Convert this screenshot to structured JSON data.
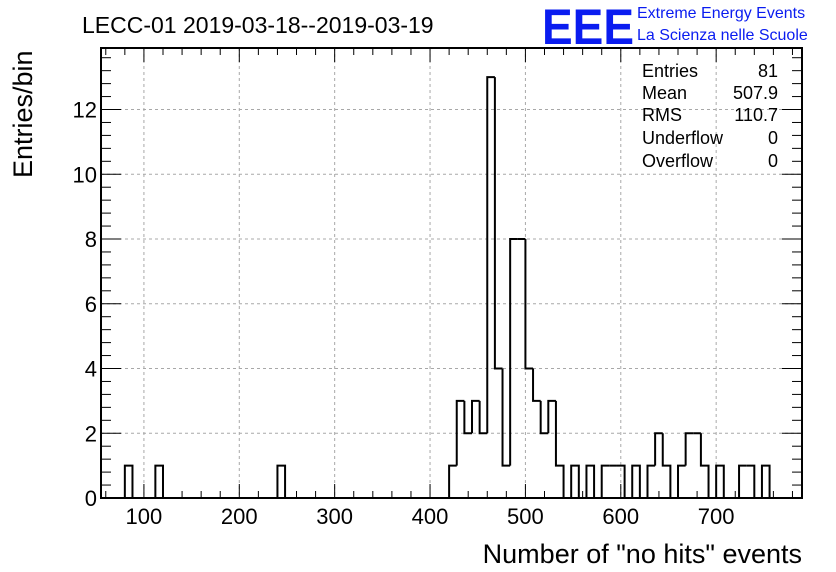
{
  "header": {
    "title": "LECC-01 2019-03-18--2019-03-19"
  },
  "logo": {
    "mark": "EEE",
    "line1": "Extreme Energy Events",
    "line2": "La Scienza nelle Scuole",
    "color": "#0a1cf0"
  },
  "stats": {
    "entries_label": "Entries",
    "entries_value": "81",
    "mean_label": "Mean",
    "mean_value": "507.9",
    "rms_label": "RMS",
    "rms_value": "110.7",
    "underflow_label": "Underflow",
    "underflow_value": "0",
    "overflow_label": "Overflow",
    "overflow_value": "0"
  },
  "chart_data": {
    "type": "histogram",
    "title": "LECC-01 2019-03-18--2019-03-19",
    "xlabel": "Number of \"no hits\" events",
    "ylabel": "Entries/bin",
    "xlim": [
      55,
      790
    ],
    "ylim": [
      0,
      13.9
    ],
    "x_ticks": [
      100,
      200,
      300,
      400,
      500,
      600,
      700
    ],
    "y_ticks": [
      0,
      2,
      4,
      6,
      8,
      10,
      12
    ],
    "grid": true,
    "line_color": "#000000",
    "bins": [
      {
        "x0": 80,
        "x1": 88,
        "count": 1
      },
      {
        "x0": 112,
        "x1": 120,
        "count": 1
      },
      {
        "x0": 240,
        "x1": 248,
        "count": 1
      },
      {
        "x0": 420,
        "x1": 428,
        "count": 1
      },
      {
        "x0": 428,
        "x1": 436,
        "count": 3
      },
      {
        "x0": 436,
        "x1": 444,
        "count": 2
      },
      {
        "x0": 444,
        "x1": 452,
        "count": 3
      },
      {
        "x0": 452,
        "x1": 460,
        "count": 2
      },
      {
        "x0": 460,
        "x1": 468,
        "count": 13
      },
      {
        "x0": 468,
        "x1": 476,
        "count": 4
      },
      {
        "x0": 476,
        "x1": 484,
        "count": 1
      },
      {
        "x0": 484,
        "x1": 492,
        "count": 8
      },
      {
        "x0": 492,
        "x1": 500,
        "count": 8
      },
      {
        "x0": 500,
        "x1": 508,
        "count": 4
      },
      {
        "x0": 508,
        "x1": 516,
        "count": 3
      },
      {
        "x0": 516,
        "x1": 524,
        "count": 2
      },
      {
        "x0": 524,
        "x1": 532,
        "count": 3
      },
      {
        "x0": 532,
        "x1": 540,
        "count": 1
      },
      {
        "x0": 548,
        "x1": 556,
        "count": 1
      },
      {
        "x0": 564,
        "x1": 572,
        "count": 1
      },
      {
        "x0": 580,
        "x1": 588,
        "count": 1
      },
      {
        "x0": 588,
        "x1": 596,
        "count": 1
      },
      {
        "x0": 596,
        "x1": 604,
        "count": 1
      },
      {
        "x0": 612,
        "x1": 620,
        "count": 1
      },
      {
        "x0": 628,
        "x1": 636,
        "count": 1
      },
      {
        "x0": 636,
        "x1": 644,
        "count": 2
      },
      {
        "x0": 644,
        "x1": 652,
        "count": 1
      },
      {
        "x0": 660,
        "x1": 668,
        "count": 1
      },
      {
        "x0": 668,
        "x1": 676,
        "count": 2
      },
      {
        "x0": 676,
        "x1": 684,
        "count": 2
      },
      {
        "x0": 684,
        "x1": 692,
        "count": 1
      },
      {
        "x0": 700,
        "x1": 708,
        "count": 1
      },
      {
        "x0": 724,
        "x1": 732,
        "count": 1
      },
      {
        "x0": 732,
        "x1": 740,
        "count": 1
      },
      {
        "x0": 748,
        "x1": 756,
        "count": 1
      }
    ]
  }
}
